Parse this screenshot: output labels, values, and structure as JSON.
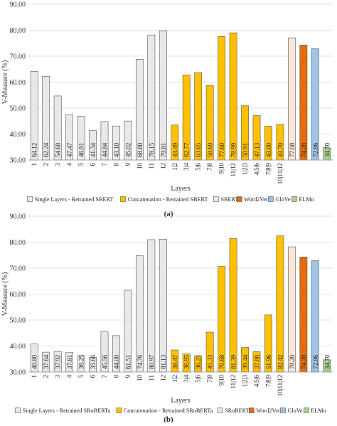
{
  "chart_data": [
    {
      "type": "bar",
      "panel_label": "(a)",
      "ylabel": "V-Measure (%)",
      "xlabel": "Layers",
      "ylim": [
        30,
        90
      ],
      "yticks": [
        "30.00",
        "40.00",
        "50.00",
        "60.00",
        "70.00",
        "80.00",
        "90.00"
      ],
      "grid": true,
      "legend_position": "bottom",
      "series": [
        {
          "name": "Single Layers - Retrained SBERT",
          "color": "#e8e8e8",
          "categories": [
            "1",
            "2",
            "3",
            "4",
            "5",
            "6",
            "7",
            "8",
            "9",
            "10",
            "11",
            "12"
          ],
          "values": [
            64.12,
            62.24,
            54.68,
            47.47,
            46.91,
            41.34,
            44.84,
            43.1,
            45.02,
            68.8,
            78.15,
            79.81
          ],
          "labels": [
            "64.12",
            "62.24",
            "54.68",
            "47.47",
            "46.91",
            "41.34",
            "44.84",
            "43.10",
            "45.02",
            "68.80",
            "78.15",
            "79.81"
          ]
        },
        {
          "name": "Concatenation - Retrained SBERT",
          "color": "#ffc000",
          "categories": [
            "1|2",
            "3|4",
            "5|6",
            "7|8",
            "9|10",
            "11|12",
            "1|2|3",
            "4|5|6",
            "7|8|9",
            "10|11|12"
          ],
          "values": [
            43.49,
            62.77,
            63.65,
            58.69,
            77.6,
            78.99,
            50.91,
            47.13,
            43.0,
            43.7
          ],
          "labels": [
            "43.49",
            "62.77",
            "63.65",
            "58.69",
            "77.60",
            "78.99",
            "50.91",
            "47.13",
            "43.00",
            "43.70"
          ]
        },
        {
          "name": "SBERT",
          "color": "#fbe5d6",
          "categories": [
            ""
          ],
          "values": [
            77.08
          ],
          "labels": [
            "77.08"
          ]
        },
        {
          "name": "Word2Vec",
          "color": "#e46c0a",
          "categories": [
            ""
          ],
          "values": [
            74.28
          ],
          "labels": [
            "74.28"
          ]
        },
        {
          "name": "GloVe",
          "color": "#9dc3e6",
          "categories": [
            ""
          ],
          "values": [
            72.86
          ],
          "labels": [
            "72.86"
          ]
        },
        {
          "name": "ELMo",
          "color": "#a9d18e",
          "categories": [
            ""
          ],
          "values": [
            34.7
          ],
          "labels": [
            "34.70"
          ]
        }
      ]
    },
    {
      "type": "bar",
      "panel_label": "(b)",
      "ylabel": "V-Measure (%)",
      "xlabel": "Layers",
      "ylim": [
        30,
        90
      ],
      "yticks": [
        "30.00",
        "40.00",
        "50.00",
        "60.00",
        "70.00",
        "80.00",
        "90.00"
      ],
      "grid": true,
      "legend_position": "bottom",
      "series": [
        {
          "name": "Single Layers - Retrained SRoBERTa",
          "color": "#e8e8e8",
          "categories": [
            "1",
            "2",
            "3",
            "4",
            "5",
            "6",
            "7",
            "8",
            "9",
            "10",
            "11",
            "12"
          ],
          "values": [
            40.8,
            37.64,
            37.92,
            37.61,
            36.25,
            35.66,
            45.56,
            44.0,
            61.51,
            74.76,
            80.97,
            81.13
          ],
          "labels": [
            "40.80",
            "37.64",
            "37.92",
            "37.61",
            "36.25",
            "35.66",
            "45.56",
            "44.00",
            "61.51",
            "74.76",
            "80.97",
            "81.13"
          ]
        },
        {
          "name": "Concatenation - Retrained SRoBERTa",
          "color": "#ffc000",
          "categories": [
            "1|2",
            "3|4",
            "5|6",
            "7|8",
            "9|10",
            "11|12",
            "1|2|3",
            "4|5|6",
            "7|8|9",
            "10|11|12"
          ],
          "values": [
            38.47,
            36.95,
            36.21,
            45.33,
            70.68,
            81.39,
            39.44,
            37.8,
            51.96,
            82.42
          ],
          "labels": [
            "38.47",
            "36.95",
            "36.21",
            "45.33",
            "70.68",
            "81.39",
            "39.44",
            "37.80",
            "51.96",
            "82.42"
          ]
        },
        {
          "name": "SRoBERTa",
          "color": "#fbe5d6",
          "categories": [
            ""
          ],
          "values": [
            78.2
          ],
          "labels": [
            "78.20"
          ]
        },
        {
          "name": "Word2Vec",
          "color": "#e46c0a",
          "categories": [
            ""
          ],
          "values": [
            74.28
          ],
          "labels": [
            "74.28"
          ]
        },
        {
          "name": "GloVe",
          "color": "#9dc3e6",
          "categories": [
            ""
          ],
          "values": [
            72.86
          ],
          "labels": [
            "72.86"
          ]
        },
        {
          "name": "ELMo",
          "color": "#a9d18e",
          "categories": [
            ""
          ],
          "values": [
            34.7
          ],
          "labels": [
            "34.70"
          ]
        }
      ]
    }
  ]
}
